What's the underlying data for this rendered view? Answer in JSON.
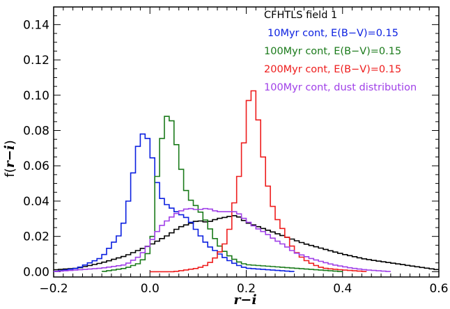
{
  "chart_data": {
    "type": "line",
    "title": "",
    "xlabel": "r−i",
    "ylabel_prefix": "f(",
    "ylabel_var": "r−i",
    "ylabel_suffix": ")",
    "xlim": [
      -0.2,
      0.6
    ],
    "ylim": [
      -0.003,
      0.15
    ],
    "xticks": [
      -0.2,
      0.0,
      0.2,
      0.4,
      0.6
    ],
    "xtick_labels": [
      "−0.2",
      "0.0",
      "0.2",
      "0.4",
      "0.6"
    ],
    "yticks": [
      0.0,
      0.02,
      0.04,
      0.06,
      0.08,
      0.1,
      0.12,
      0.14
    ],
    "ytick_labels": [
      "0.00",
      "0.02",
      "0.04",
      "0.06",
      "0.08",
      "0.10",
      "0.12",
      "0.14"
    ],
    "legend_placement": "top-right",
    "grid": false,
    "series": [
      {
        "name": "CFHTLS field 1",
        "color": "#000000",
        "points": [
          [
            -0.2,
            0.001
          ],
          [
            -0.15,
            0.002
          ],
          [
            -0.1,
            0.005
          ],
          [
            -0.05,
            0.009
          ],
          [
            0.0,
            0.015
          ],
          [
            0.02,
            0.018
          ],
          [
            0.04,
            0.021
          ],
          [
            0.06,
            0.025
          ],
          [
            0.08,
            0.027
          ],
          [
            0.1,
            0.029
          ],
          [
            0.12,
            0.028
          ],
          [
            0.14,
            0.03
          ],
          [
            0.16,
            0.031
          ],
          [
            0.18,
            0.032
          ],
          [
            0.2,
            0.028
          ],
          [
            0.24,
            0.024
          ],
          [
            0.28,
            0.02
          ],
          [
            0.32,
            0.016
          ],
          [
            0.36,
            0.013
          ],
          [
            0.4,
            0.01
          ],
          [
            0.45,
            0.007
          ],
          [
            0.5,
            0.005
          ],
          [
            0.55,
            0.003
          ],
          [
            0.6,
            0.001
          ]
        ]
      },
      {
        "name": "10Myr cont, E(B−V)=0.15",
        "color": "#0a1fe0",
        "points": [
          [
            -0.2,
            0.0
          ],
          [
            -0.15,
            0.002
          ],
          [
            -0.1,
            0.008
          ],
          [
            -0.08,
            0.015
          ],
          [
            -0.06,
            0.022
          ],
          [
            -0.05,
            0.033
          ],
          [
            -0.04,
            0.047
          ],
          [
            -0.03,
            0.065
          ],
          [
            -0.02,
            0.077
          ],
          [
            -0.01,
            0.079
          ],
          [
            0.0,
            0.072
          ],
          [
            0.01,
            0.057
          ],
          [
            0.02,
            0.044
          ],
          [
            0.03,
            0.039
          ],
          [
            0.04,
            0.037
          ],
          [
            0.06,
            0.033
          ],
          [
            0.08,
            0.03
          ],
          [
            0.1,
            0.022
          ],
          [
            0.12,
            0.015
          ],
          [
            0.14,
            0.011
          ],
          [
            0.16,
            0.007
          ],
          [
            0.18,
            0.004
          ],
          [
            0.2,
            0.002
          ],
          [
            0.25,
            0.001
          ],
          [
            0.3,
            0.0
          ]
        ]
      },
      {
        "name": "100Myr cont, E(B−V)=0.15",
        "color": "#1a7a1a",
        "points": [
          [
            -0.1,
            0.0
          ],
          [
            -0.05,
            0.002
          ],
          [
            -0.02,
            0.005
          ],
          [
            0.0,
            0.012
          ],
          [
            0.01,
            0.028
          ],
          [
            0.015,
            0.054
          ],
          [
            0.02,
            0.068
          ],
          [
            0.03,
            0.083
          ],
          [
            0.04,
            0.093
          ],
          [
            0.05,
            0.078
          ],
          [
            0.06,
            0.066
          ],
          [
            0.07,
            0.05
          ],
          [
            0.08,
            0.042
          ],
          [
            0.1,
            0.036
          ],
          [
            0.12,
            0.027
          ],
          [
            0.14,
            0.016
          ],
          [
            0.16,
            0.01
          ],
          [
            0.18,
            0.006
          ],
          [
            0.2,
            0.004
          ],
          [
            0.25,
            0.003
          ],
          [
            0.3,
            0.002
          ],
          [
            0.35,
            0.001
          ],
          [
            0.4,
            0.0
          ]
        ]
      },
      {
        "name": "200Myr cont, E(B−V)=0.15",
        "color": "#ee1c1c",
        "points": [
          [
            0.0,
            0.0
          ],
          [
            0.05,
            0.0
          ],
          [
            0.1,
            0.002
          ],
          [
            0.12,
            0.004
          ],
          [
            0.14,
            0.009
          ],
          [
            0.16,
            0.018
          ],
          [
            0.17,
            0.03
          ],
          [
            0.18,
            0.048
          ],
          [
            0.19,
            0.06
          ],
          [
            0.2,
            0.086
          ],
          [
            0.21,
            0.108
          ],
          [
            0.22,
            0.097
          ],
          [
            0.23,
            0.075
          ],
          [
            0.24,
            0.055
          ],
          [
            0.25,
            0.042
          ],
          [
            0.26,
            0.032
          ],
          [
            0.28,
            0.022
          ],
          [
            0.3,
            0.012
          ],
          [
            0.32,
            0.007
          ],
          [
            0.34,
            0.004
          ],
          [
            0.36,
            0.002
          ],
          [
            0.4,
            0.001
          ],
          [
            0.45,
            0.0
          ]
        ]
      },
      {
        "name": "100Myr cont, dust distribution",
        "color": "#a040e8",
        "points": [
          [
            -0.2,
            0.0
          ],
          [
            -0.15,
            0.001
          ],
          [
            -0.1,
            0.002
          ],
          [
            -0.05,
            0.004
          ],
          [
            -0.02,
            0.009
          ],
          [
            0.0,
            0.016
          ],
          [
            0.02,
            0.025
          ],
          [
            0.04,
            0.03
          ],
          [
            0.06,
            0.034
          ],
          [
            0.08,
            0.036
          ],
          [
            0.1,
            0.035
          ],
          [
            0.12,
            0.036
          ],
          [
            0.14,
            0.034
          ],
          [
            0.16,
            0.034
          ],
          [
            0.18,
            0.034
          ],
          [
            0.2,
            0.029
          ],
          [
            0.22,
            0.025
          ],
          [
            0.24,
            0.022
          ],
          [
            0.26,
            0.018
          ],
          [
            0.28,
            0.015
          ],
          [
            0.3,
            0.011
          ],
          [
            0.34,
            0.007
          ],
          [
            0.38,
            0.004
          ],
          [
            0.42,
            0.002
          ],
          [
            0.45,
            0.001
          ],
          [
            0.5,
            0.0
          ]
        ]
      }
    ]
  }
}
